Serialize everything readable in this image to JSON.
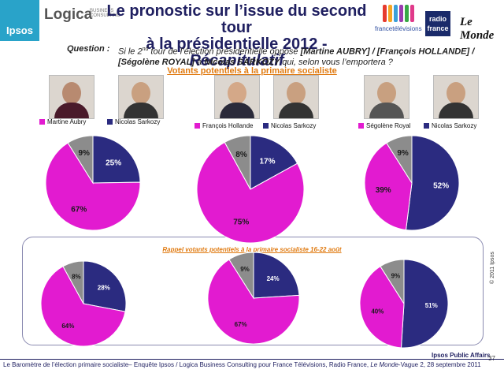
{
  "header": {
    "ipsos_logo": "Ipsos",
    "logica_logo": "Logica",
    "logica_sub": "BUSINESS CONSULTING",
    "title_line1": "Le pronostic sur l’issue du second tour",
    "title_line2_a": "à la présidentielle 2012 - ",
    "title_line2_b": "Récapitulatif",
    "ftv_logo": "francetélévisions",
    "rf_logo_1": "radio",
    "rf_logo_2": "france",
    "lemonde_logo": "Le Monde",
    "ftv_colors": [
      "#e63b2e",
      "#f5a623",
      "#3aa0d8",
      "#9b3bb0",
      "#38a845",
      "#e03a8a"
    ]
  },
  "question": {
    "label": "Question :",
    "p1": "Si le 2",
    "p1_sup": "nd",
    "p2": " tour de l’élection présidentielle oppose ",
    "b1": "[Martine AUBRY] / [François HOLLANDE] / [Ségolène ROYAL]",
    "p3": " à ",
    "b2": "Nicolas SARKOZY",
    "p4": " qui, selon vous l’emportera ?"
  },
  "subtitle": "Votants potentiels à la primaire socialiste",
  "legend": [
    {
      "label": "Martine Aubry",
      "color": "#e21bd0"
    },
    {
      "label": "Nicolas Sarkozy",
      "color": "#2b2b80"
    },
    {
      "label": "François Hollande",
      "color": "#e21bd0"
    },
    {
      "label": "Nicolas Sarkozy",
      "color": "#2b2b80"
    },
    {
      "label": "Ségolène Royal",
      "color": "#e21bd0"
    },
    {
      "label": "Nicolas Sarkozy",
      "color": "#2b2b80"
    }
  ],
  "recall_title": "Rappel votants potentiels à la primaire socialiste 16-22 août",
  "colors": {
    "socialist": "#e21bd0",
    "sarkozy": "#2b2b80",
    "other": "#8c8c8c"
  },
  "chart_data": [
    {
      "type": "pie",
      "group": "Votants potentiels à la primaire socialiste",
      "labels": [
        "Martine Aubry",
        "Nicolas Sarkozy",
        "Autre"
      ],
      "values": [
        67,
        25,
        9
      ],
      "display": [
        "67%",
        "25%",
        "9%"
      ]
    },
    {
      "type": "pie",
      "group": "Votants potentiels à la primaire socialiste",
      "labels": [
        "François Hollande",
        "Nicolas Sarkozy",
        "Autre"
      ],
      "values": [
        75,
        17,
        8
      ],
      "display": [
        "75%",
        "17%",
        "8%"
      ]
    },
    {
      "type": "pie",
      "group": "Votants potentiels à la primaire socialiste",
      "labels": [
        "Ségolène Royal",
        "Nicolas Sarkozy",
        "Autre"
      ],
      "values": [
        39,
        52,
        9
      ],
      "display": [
        "39%",
        "52%",
        "9%"
      ]
    },
    {
      "type": "pie",
      "group": "Rappel votants potentiels à la primaire socialiste 16-22 août",
      "labels": [
        "Martine Aubry",
        "Nicolas Sarkozy",
        "Autre"
      ],
      "values": [
        64,
        28,
        8
      ],
      "display": [
        "64%",
        "28%",
        "8%"
      ]
    },
    {
      "type": "pie",
      "group": "Rappel votants potentiels à la primaire socialiste 16-22 août",
      "labels": [
        "François Hollande",
        "Nicolas Sarkozy",
        "Autre"
      ],
      "values": [
        67,
        24,
        9
      ],
      "display": [
        "67%",
        "24%",
        "9%"
      ]
    },
    {
      "type": "pie",
      "group": "Rappel votants potentiels à la primaire socialiste 16-22 août",
      "labels": [
        "Ségolène Royal",
        "Nicolas Sarkozy",
        "Autre"
      ],
      "values": [
        40,
        51,
        9
      ],
      "display": [
        "40%",
        "51%",
        "9%"
      ]
    }
  ],
  "copyright": "© 2011 Ipsos",
  "brand": "Ipsos Public Affairs",
  "footer_a": "Le Baromètre de l’élection primaire socialiste– Enquête Ipsos / Logica Business Consulting pour France Télévisions, Radio France, ",
  "footer_b": "Le Monde",
  "footer_c": "-Vague 2, 28 septembre 2011",
  "page_number": "37"
}
